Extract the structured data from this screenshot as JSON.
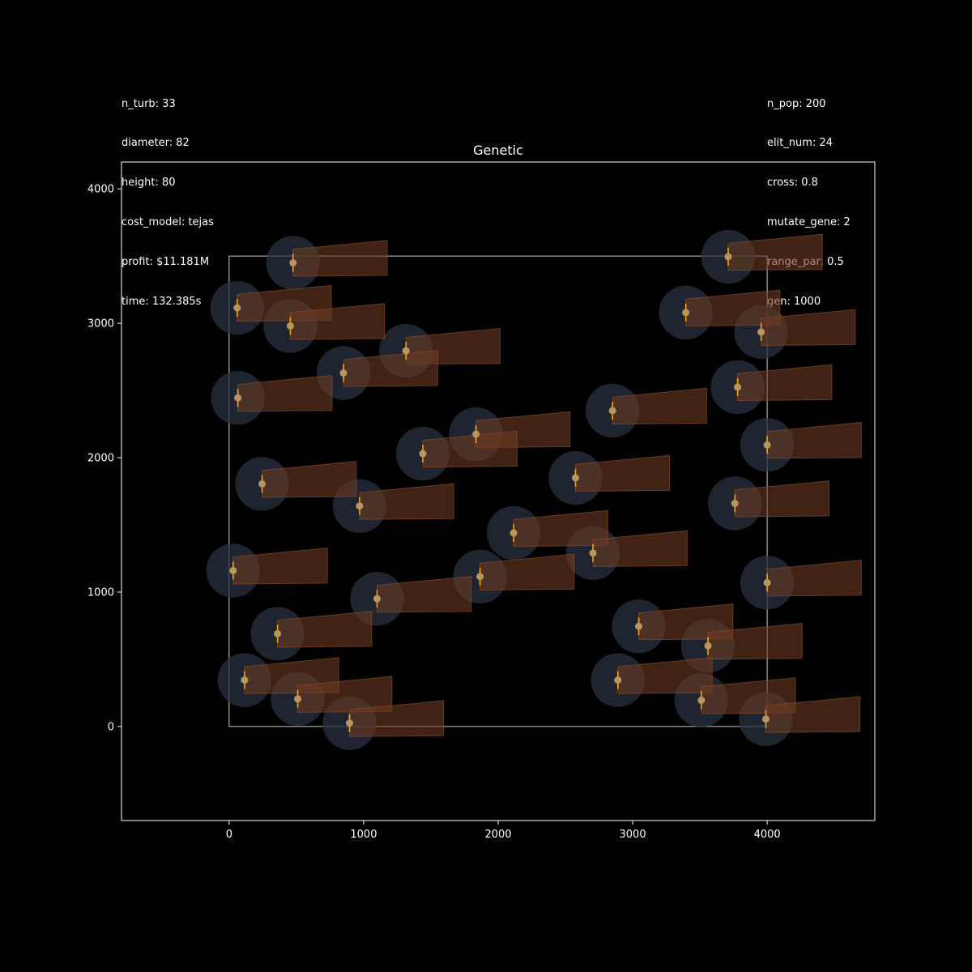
{
  "info_left": [
    "n_turb: 33",
    "diameter: 82",
    "height: 80",
    "cost_model: tejas",
    "profit: $11.181M",
    "time: 132.385s"
  ],
  "info_right": [
    "n_pop: 200",
    "elit_num: 24",
    "cross: 0.8",
    "mutate_gene: 2",
    "range_par: 0.5",
    "gen: 1000"
  ],
  "colors": {
    "background": "#000000",
    "axes": "#ffffff",
    "boundary": "#cccccc",
    "rotor_disk": "#2a3140",
    "turbine_marker": "#b8965e",
    "rotor_line": "#ffa500",
    "wake": "#6b3a22",
    "wake_edge": "#8a4a25"
  },
  "chart_data": {
    "type": "scatter",
    "title": "Genetic",
    "xlabel": "",
    "ylabel": "",
    "xlim": [
      -800,
      4800
    ],
    "ylim": [
      -700,
      4200
    ],
    "xticks": [
      0,
      1000,
      2000,
      3000,
      4000
    ],
    "yticks": [
      0,
      1000,
      2000,
      3000,
      4000
    ],
    "grid": false,
    "boundary": {
      "x": [
        0,
        4000
      ],
      "y": [
        0,
        3500
      ]
    },
    "rotor_radius_drawn": 200,
    "wake": {
      "length": 700,
      "near_half_width": 100,
      "far_half_width": 130,
      "angle_deg": 3
    },
    "turbines": [
      {
        "x": 475,
        "y": 3450
      },
      {
        "x": 3710,
        "y": 3495
      },
      {
        "x": 60,
        "y": 3115
      },
      {
        "x": 455,
        "y": 2980
      },
      {
        "x": 3395,
        "y": 3080
      },
      {
        "x": 3955,
        "y": 2935
      },
      {
        "x": 1315,
        "y": 2795
      },
      {
        "x": 850,
        "y": 2630
      },
      {
        "x": 65,
        "y": 2445
      },
      {
        "x": 3780,
        "y": 2525
      },
      {
        "x": 2850,
        "y": 2350
      },
      {
        "x": 1835,
        "y": 2175
      },
      {
        "x": 1440,
        "y": 2030
      },
      {
        "x": 4000,
        "y": 2095
      },
      {
        "x": 2575,
        "y": 1850
      },
      {
        "x": 245,
        "y": 1805
      },
      {
        "x": 970,
        "y": 1640
      },
      {
        "x": 3760,
        "y": 1660
      },
      {
        "x": 2115,
        "y": 1440
      },
      {
        "x": 2705,
        "y": 1290
      },
      {
        "x": 30,
        "y": 1160
      },
      {
        "x": 1865,
        "y": 1115
      },
      {
        "x": 4000,
        "y": 1070
      },
      {
        "x": 1100,
        "y": 950
      },
      {
        "x": 360,
        "y": 690
      },
      {
        "x": 3045,
        "y": 745
      },
      {
        "x": 3560,
        "y": 600
      },
      {
        "x": 115,
        "y": 345
      },
      {
        "x": 2890,
        "y": 345
      },
      {
        "x": 510,
        "y": 205
      },
      {
        "x": 3510,
        "y": 195
      },
      {
        "x": 895,
        "y": 25
      },
      {
        "x": 3990,
        "y": 55
      }
    ]
  }
}
